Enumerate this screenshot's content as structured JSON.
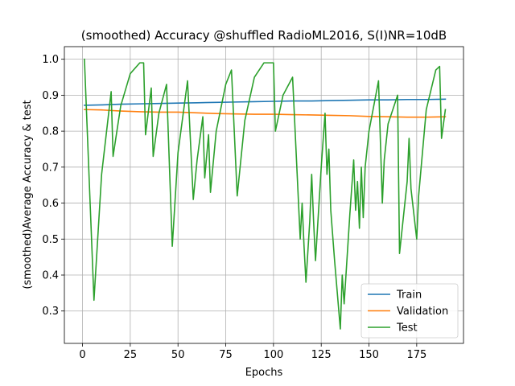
{
  "chart_data": {
    "type": "line",
    "title": "(smoothed) Accuracy @shuffled RadioML2016, S(I)NR=10dB",
    "xlabel": "Epochs",
    "ylabel": "(smoothed)Average Accuracy & test",
    "xlim": [
      -9.5,
      199.5
    ],
    "ylim": [
      0.21,
      1.035
    ],
    "xticks": [
      0,
      25,
      50,
      75,
      100,
      125,
      150,
      175
    ],
    "yticks": [
      0.3,
      0.4,
      0.5,
      0.6,
      0.7,
      0.8,
      0.9,
      1.0
    ],
    "grid": true,
    "legend_position": "lower-right",
    "colors": {
      "Train": "#1f77b4",
      "Validation": "#ff7f0e",
      "Test": "#2ca02c"
    },
    "series": [
      {
        "name": "Train",
        "x": [
          1,
          10,
          20,
          30,
          40,
          50,
          60,
          70,
          80,
          90,
          100,
          110,
          120,
          130,
          140,
          150,
          160,
          170,
          180,
          190
        ],
        "values": [
          0.872,
          0.873,
          0.875,
          0.876,
          0.877,
          0.878,
          0.879,
          0.88,
          0.881,
          0.882,
          0.883,
          0.884,
          0.884,
          0.885,
          0.886,
          0.887,
          0.887,
          0.888,
          0.888,
          0.889
        ]
      },
      {
        "name": "Validation",
        "x": [
          1,
          10,
          20,
          30,
          40,
          50,
          60,
          70,
          80,
          90,
          100,
          110,
          120,
          130,
          140,
          150,
          160,
          170,
          180,
          190
        ],
        "values": [
          0.86,
          0.859,
          0.856,
          0.854,
          0.853,
          0.853,
          0.851,
          0.849,
          0.848,
          0.847,
          0.847,
          0.846,
          0.845,
          0.844,
          0.843,
          0.841,
          0.84,
          0.839,
          0.839,
          0.84
        ]
      },
      {
        "name": "Test",
        "x": [
          1,
          6,
          10,
          15,
          16,
          20,
          25,
          30,
          32,
          33,
          36,
          37,
          40,
          44,
          47,
          50,
          55,
          58,
          60,
          63,
          64,
          66,
          67,
          70,
          75,
          78,
          81,
          85,
          90,
          95,
          100,
          101,
          105,
          110,
          114,
          115,
          116,
          117,
          119,
          120,
          121,
          122,
          125,
          127,
          128,
          129,
          130,
          132,
          135,
          136,
          137,
          140,
          142,
          143,
          144,
          145,
          146,
          147,
          148,
          150,
          155,
          157,
          158,
          160,
          165,
          166,
          170,
          171,
          172,
          175,
          176,
          180,
          185,
          187,
          188,
          190
        ],
        "values": [
          1.0,
          0.33,
          0.68,
          0.91,
          0.73,
          0.87,
          0.96,
          0.99,
          0.99,
          0.79,
          0.92,
          0.73,
          0.85,
          0.93,
          0.48,
          0.74,
          0.94,
          0.61,
          0.72,
          0.84,
          0.67,
          0.79,
          0.63,
          0.8,
          0.93,
          0.97,
          0.62,
          0.83,
          0.95,
          0.99,
          0.99,
          0.8,
          0.9,
          0.95,
          0.5,
          0.6,
          0.48,
          0.38,
          0.55,
          0.68,
          0.55,
          0.44,
          0.7,
          0.85,
          0.68,
          0.75,
          0.58,
          0.44,
          0.25,
          0.4,
          0.32,
          0.57,
          0.72,
          0.58,
          0.66,
          0.53,
          0.7,
          0.56,
          0.7,
          0.8,
          0.94,
          0.6,
          0.72,
          0.82,
          0.9,
          0.46,
          0.66,
          0.78,
          0.64,
          0.5,
          0.62,
          0.86,
          0.97,
          0.98,
          0.78,
          0.86
        ]
      }
    ]
  }
}
